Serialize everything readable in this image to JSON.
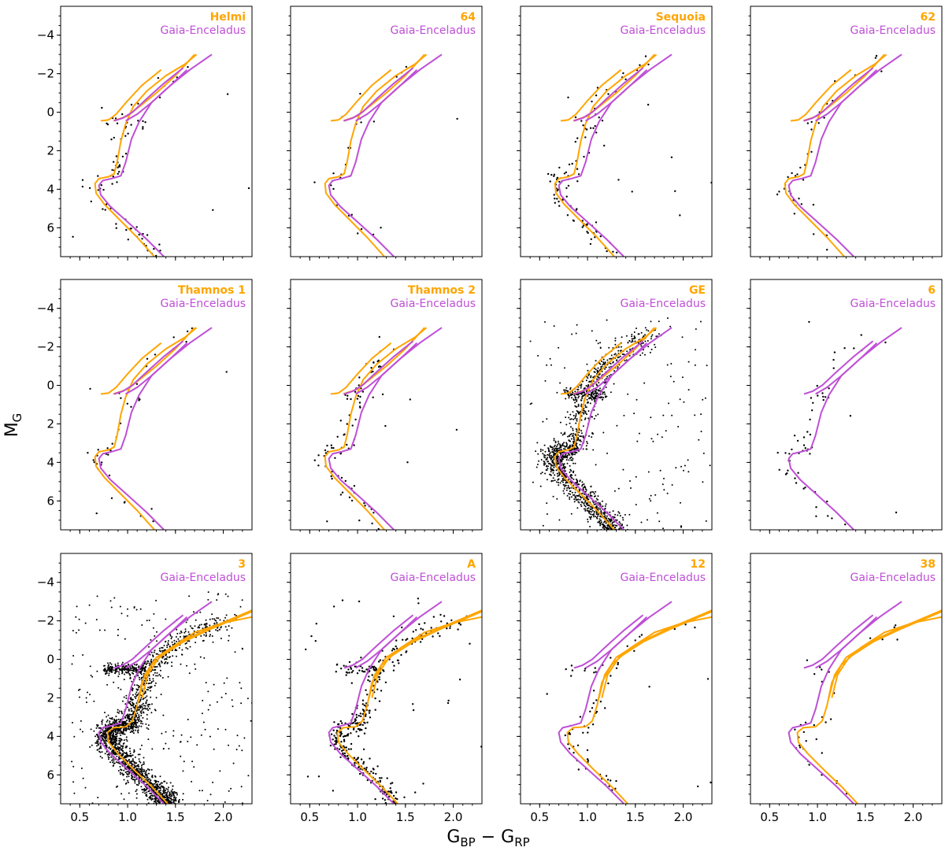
{
  "figure": {
    "xlabel": "G",
    "xlabel_sub1": "BP",
    "xlabel_mid": " − G",
    "xlabel_sub2": "RP",
    "ylabel": "M",
    "ylabel_sub": "G"
  },
  "colors": {
    "orange": "#ffa500",
    "purple": "#bf4fd6",
    "points": "#000000"
  },
  "chart_data": [
    {
      "type": "scatter",
      "title": "Helmi",
      "reference": "Gaia-Enceladus",
      "xlim": [
        0.3,
        2.3
      ],
      "ylim": [
        7.5,
        -5.5
      ],
      "xticks": [
        "0.5",
        "1.0",
        "1.5",
        "2.0"
      ],
      "yticks": [
        "−4",
        "−2",
        "0",
        "2",
        "4",
        "6"
      ],
      "shift": 0,
      "n_points": 90,
      "density": "sparse"
    },
    {
      "type": "scatter",
      "title": "64",
      "reference": "Gaia-Enceladus",
      "xlim": [
        0.3,
        2.3
      ],
      "ylim": [
        7.5,
        -5.5
      ],
      "xticks": [
        "0.5",
        "1.0",
        "1.5",
        "2.0"
      ],
      "yticks": [
        "−4",
        "−2",
        "0",
        "2",
        "4",
        "6"
      ],
      "shift": 0,
      "n_points": 30,
      "density": "sparse"
    },
    {
      "type": "scatter",
      "title": "Sequoia",
      "reference": "Gaia-Enceladus",
      "xlim": [
        0.3,
        2.3
      ],
      "ylim": [
        7.5,
        -5.5
      ],
      "xticks": [
        "0.5",
        "1.0",
        "1.5",
        "2.0"
      ],
      "yticks": [
        "−4",
        "−2",
        "0",
        "2",
        "4",
        "6"
      ],
      "shift": 0,
      "n_points": 110,
      "density": "sparse"
    },
    {
      "type": "scatter",
      "title": "62",
      "reference": "Gaia-Enceladus",
      "xlim": [
        0.3,
        2.3
      ],
      "ylim": [
        7.5,
        -5.5
      ],
      "xticks": [
        "0.5",
        "1.0",
        "1.5",
        "2.0"
      ],
      "yticks": [
        "−4",
        "−2",
        "0",
        "2",
        "4",
        "6"
      ],
      "shift": 0,
      "n_points": 40,
      "density": "sparse"
    },
    {
      "type": "scatter",
      "title": "Thamnos 1",
      "reference": "Gaia-Enceladus",
      "xlim": [
        0.3,
        2.3
      ],
      "ylim": [
        7.5,
        -5.5
      ],
      "xticks": [
        "0.5",
        "1.0",
        "1.5",
        "2.0"
      ],
      "yticks": [
        "−4",
        "−2",
        "0",
        "2",
        "4",
        "6"
      ],
      "shift": 0,
      "n_points": 45,
      "density": "sparse"
    },
    {
      "type": "scatter",
      "title": "Thamnos 2",
      "reference": "Gaia-Enceladus",
      "xlim": [
        0.3,
        2.3
      ],
      "ylim": [
        7.5,
        -5.5
      ],
      "xticks": [
        "0.5",
        "1.0",
        "1.5",
        "2.0"
      ],
      "yticks": [
        "−4",
        "−2",
        "0",
        "2",
        "4",
        "6"
      ],
      "shift": 0,
      "n_points": 90,
      "density": "sparse"
    },
    {
      "type": "scatter",
      "title": "GE",
      "reference": "Gaia-Enceladus",
      "xlim": [
        0.3,
        2.3
      ],
      "ylim": [
        7.5,
        -5.5
      ],
      "xticks": [
        "0.5",
        "1.0",
        "1.5",
        "2.0"
      ],
      "yticks": [
        "−4",
        "−2",
        "0",
        "2",
        "4",
        "6"
      ],
      "shift": 0,
      "n_points": 1600,
      "density": "dense"
    },
    {
      "type": "scatter",
      "title": "6",
      "reference": "Gaia-Enceladus",
      "xlim": [
        0.3,
        2.3
      ],
      "ylim": [
        7.5,
        -5.5
      ],
      "xticks": [
        "0.5",
        "1.0",
        "1.5",
        "2.0"
      ],
      "yticks": [
        "−4",
        "−2",
        "0",
        "2",
        "4",
        "6"
      ],
      "shift": 0,
      "n_points": 60,
      "density": "sparse",
      "only_reference": true
    },
    {
      "type": "scatter",
      "title": "3",
      "reference": "Gaia-Enceladus",
      "xlim": [
        0.3,
        2.3
      ],
      "ylim": [
        7.5,
        -5.5
      ],
      "xticks": [
        "0.5",
        "1.0",
        "1.5",
        "2.0"
      ],
      "yticks": [
        "−4",
        "−2",
        "0",
        "2",
        "4",
        "6"
      ],
      "shift": 0.1,
      "n_points": 2400,
      "density": "dense"
    },
    {
      "type": "scatter",
      "title": "A",
      "reference": "Gaia-Enceladus",
      "xlim": [
        0.3,
        2.3
      ],
      "ylim": [
        7.5,
        -5.5
      ],
      "xticks": [
        "0.5",
        "1.0",
        "1.5",
        "2.0"
      ],
      "yticks": [
        "−4",
        "−2",
        "0",
        "2",
        "4",
        "6"
      ],
      "shift": 0.1,
      "n_points": 420,
      "density": "medium"
    },
    {
      "type": "scatter",
      "title": "12",
      "reference": "Gaia-Enceladus",
      "xlim": [
        0.3,
        2.3
      ],
      "ylim": [
        7.5,
        -5.5
      ],
      "xticks": [
        "0.5",
        "1.0",
        "1.5",
        "2.0"
      ],
      "yticks": [
        "−4",
        "−2",
        "0",
        "2",
        "4",
        "6"
      ],
      "shift": 0.1,
      "n_points": 80,
      "density": "sparse"
    },
    {
      "type": "scatter",
      "title": "38",
      "reference": "Gaia-Enceladus",
      "xlim": [
        0.3,
        2.3
      ],
      "ylim": [
        7.5,
        -5.5
      ],
      "xticks": [
        "0.5",
        "1.0",
        "1.5",
        "2.0"
      ],
      "yticks": [
        "−4",
        "−2",
        "0",
        "2",
        "4",
        "6"
      ],
      "shift": 0.1,
      "n_points": 35,
      "density": "sparse"
    }
  ]
}
